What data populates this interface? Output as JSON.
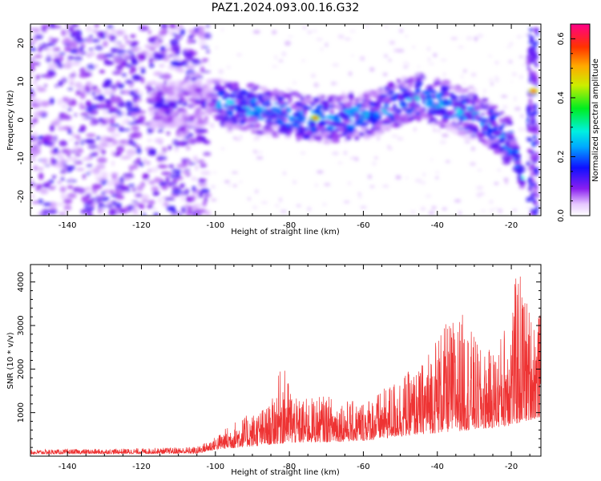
{
  "page": {
    "title": "PAZ1.2024.093.00.16.G32"
  },
  "chart_data": [
    {
      "type": "heatmap",
      "xlabel": "Height of straight line (km)",
      "ylabel": "Frequency (Hz)",
      "xlim": [
        -150,
        -12
      ],
      "ylim": [
        -25,
        25
      ],
      "xticks": [
        "-140",
        "-120",
        "-100",
        "-80",
        "-60",
        "-40",
        "-20"
      ],
      "yticks": [
        "20",
        "10",
        "0",
        "-10",
        "-20"
      ],
      "colorbar": {
        "label": "Normalized spectral amplitude",
        "ticks": [
          "0.0",
          "0.2",
          "0.4",
          "0.6"
        ],
        "range": [
          0,
          0.65
        ],
        "colormap": "rainbow (white → violet → blue → cyan → green → yellow → orange → red → magenta)"
      },
      "ridge_track": [
        {
          "x": -115,
          "y": 4
        },
        {
          "x": -100,
          "y": 4.5
        },
        {
          "x": -90,
          "y": 3
        },
        {
          "x": -80,
          "y": 1
        },
        {
          "x": -70,
          "y": 0
        },
        {
          "x": -60,
          "y": 1
        },
        {
          "x": -52,
          "y": 4
        },
        {
          "x": -45,
          "y": 6
        },
        {
          "x": -38,
          "y": 4
        },
        {
          "x": -30,
          "y": 1
        },
        {
          "x": -24,
          "y": -2
        },
        {
          "x": -19,
          "y": -8
        },
        {
          "x": -17,
          "y": -16
        }
      ],
      "peak_points": [
        {
          "x": -73,
          "y": 0.5,
          "value": 0.55
        },
        {
          "x": -14,
          "y": 7.5,
          "value": 0.6
        }
      ]
    },
    {
      "type": "line",
      "xlabel": "Height of straight line (km)",
      "ylabel": "SNR (10 * v/v)",
      "xlim": [
        -150,
        -12
      ],
      "ylim": [
        0,
        4400
      ],
      "xticks": [
        "-140",
        "-120",
        "-100",
        "-80",
        "-60",
        "-40",
        "-20"
      ],
      "yticks": [
        "1000",
        "2000",
        "3000",
        "4000"
      ],
      "series": [
        {
          "color": "#ee3333",
          "envelope": [
            {
              "x": -150,
              "y": 150
            },
            {
              "x": -140,
              "y": 160
            },
            {
              "x": -120,
              "y": 180
            },
            {
              "x": -105,
              "y": 220
            },
            {
              "x": -100,
              "y": 450
            },
            {
              "x": -95,
              "y": 800
            },
            {
              "x": -90,
              "y": 1000
            },
            {
              "x": -85,
              "y": 1200
            },
            {
              "x": -82,
              "y": 2150
            },
            {
              "x": -78,
              "y": 1300
            },
            {
              "x": -70,
              "y": 1400
            },
            {
              "x": -62,
              "y": 1250
            },
            {
              "x": -55,
              "y": 1500
            },
            {
              "x": -50,
              "y": 1900
            },
            {
              "x": -45,
              "y": 2000
            },
            {
              "x": -40,
              "y": 2900
            },
            {
              "x": -33,
              "y": 3300
            },
            {
              "x": -28,
              "y": 2400
            },
            {
              "x": -24,
              "y": 2500
            },
            {
              "x": -21,
              "y": 3300
            },
            {
              "x": -18,
              "y": 4400
            },
            {
              "x": -15,
              "y": 3400
            },
            {
              "x": -12,
              "y": 3300
            }
          ],
          "baseline": [
            {
              "x": -150,
              "y": 50
            },
            {
              "x": -105,
              "y": 60
            },
            {
              "x": -100,
              "y": 150
            },
            {
              "x": -80,
              "y": 300
            },
            {
              "x": -60,
              "y": 350
            },
            {
              "x": -45,
              "y": 500
            },
            {
              "x": -30,
              "y": 600
            },
            {
              "x": -20,
              "y": 700
            },
            {
              "x": -12,
              "y": 900
            }
          ]
        }
      ]
    }
  ]
}
